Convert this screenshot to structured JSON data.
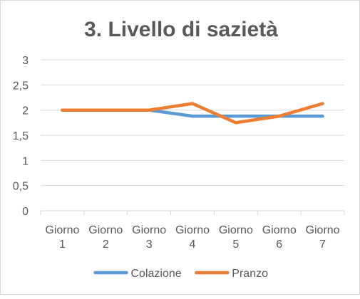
{
  "chart_data": {
    "type": "line",
    "title": "3. Livello di sazietà",
    "xlabel": "",
    "ylabel": "",
    "categories": [
      [
        "Giorno",
        "1"
      ],
      [
        "Giorno",
        "2"
      ],
      [
        "Giorno",
        "3"
      ],
      [
        "Giorno",
        "4"
      ],
      [
        "Giorno",
        "5"
      ],
      [
        "Giorno",
        "6"
      ],
      [
        "Giorno",
        "7"
      ]
    ],
    "yticks": [
      "0",
      "0,5",
      "1",
      "1,5",
      "2",
      "2,5",
      "3"
    ],
    "ylim": [
      0,
      3
    ],
    "grid": true,
    "legend_position": "bottom",
    "series": [
      {
        "name": "Colazione",
        "color": "#5b9bd5",
        "values": [
          2,
          2,
          2,
          1.88,
          1.88,
          1.88,
          1.88
        ]
      },
      {
        "name": "Pranzo",
        "color": "#ed7d31",
        "values": [
          2,
          2,
          2,
          2.13,
          1.75,
          1.88,
          2.13
        ]
      }
    ]
  }
}
